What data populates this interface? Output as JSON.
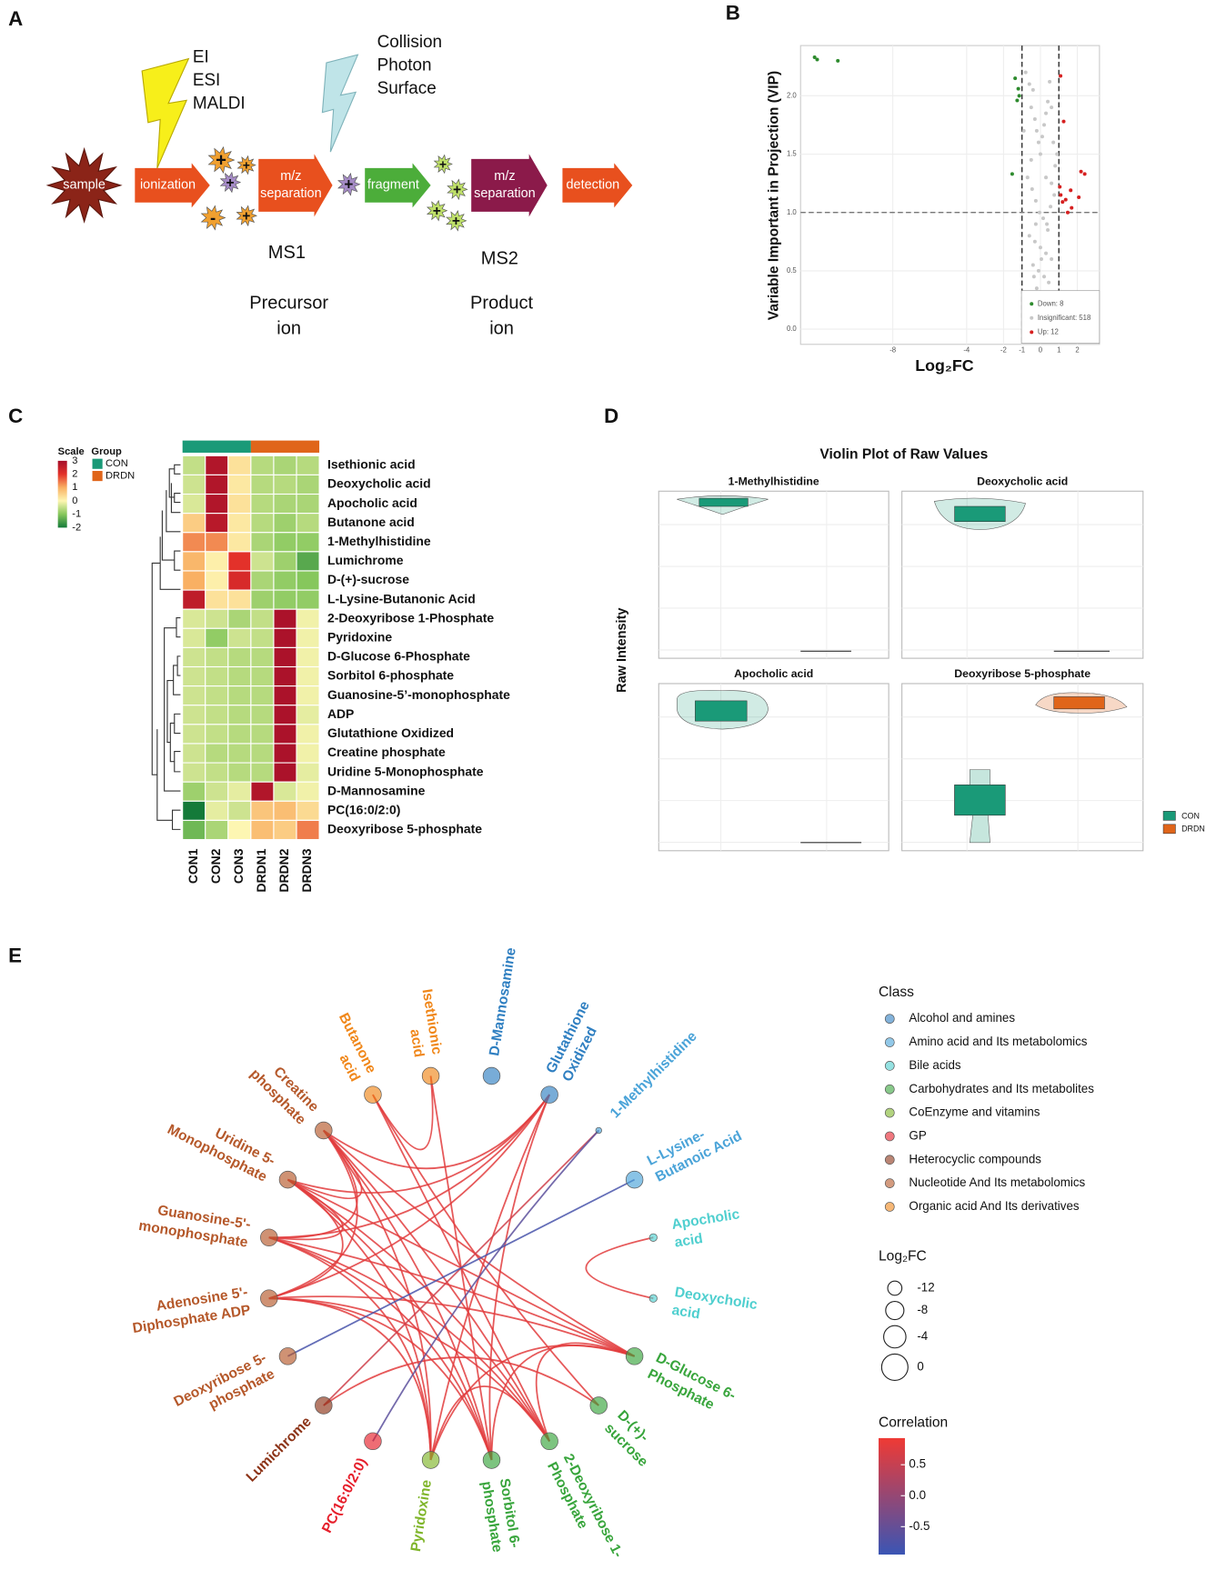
{
  "panel_labels": [
    "A",
    "B",
    "C",
    "D",
    "E"
  ],
  "panel_a": {
    "ionization_sources": [
      "EI",
      "ESI",
      "MALDI"
    ],
    "dissociation_methods": [
      "Collision",
      "Photon",
      "Surface"
    ],
    "steps": [
      [
        "sample"
      ],
      [
        "ionization"
      ],
      [
        "m/z",
        "separation"
      ],
      [
        "fragment"
      ],
      [
        "m/z",
        "separation"
      ],
      [
        "detection"
      ]
    ],
    "ion_signs": [
      "+",
      "+",
      "+",
      "-",
      "+",
      "+",
      "+",
      "+",
      "+",
      "+"
    ],
    "stage1": {
      "name": "MS1",
      "ion_lines": [
        "Precursor",
        "ion"
      ]
    },
    "stage2": {
      "name": "MS2",
      "ion_lines": [
        "Product",
        "ion"
      ]
    }
  },
  "panel_b": {
    "type": "scatter",
    "x_label": "Log₂FC",
    "y_label": "Variable Important in Projection (VIP)",
    "xlim": [
      -13,
      3.2
    ],
    "ylim": [
      -0.13,
      2.43
    ],
    "xticks": [
      -8,
      -4,
      -2,
      -1,
      0,
      1,
      2
    ],
    "yticks": [
      {
        "value": 0,
        "label": "0.0"
      },
      0.5,
      {
        "value": 1,
        "label": "1.0"
      },
      1.5,
      {
        "value": 2,
        "label": "2.0"
      }
    ],
    "fc_thresholds": [
      -1,
      1
    ],
    "vip_threshold": 1,
    "grid": true,
    "series": [
      {
        "name": "Down: 8",
        "color": "#2e8b2e",
        "x": [
          -12.24,
          -12.1,
          -10.98,
          -1.37,
          -1.2,
          -1.15,
          -1.26,
          -1.53
        ],
        "y": [
          2.33,
          2.31,
          2.3,
          2.15,
          2.06,
          2.0,
          1.96,
          1.33
        ]
      },
      {
        "name": "Insignificant: 518",
        "color": "#c8c8c8",
        "x": [
          -0.8,
          -0.6,
          -0.5,
          -0.4,
          -0.3,
          -0.2,
          -0.1,
          0,
          0.1,
          0.2,
          0.3,
          0.4,
          0.5,
          0.6,
          0.7,
          0.8,
          -0.7,
          -0.45,
          -0.25,
          -0.05,
          0.15,
          0.35,
          0.55,
          0.75,
          -0.6,
          -0.3,
          0,
          0.3,
          0.6,
          -0.4,
          -0.1,
          0.2,
          0.45,
          -0.2,
          0.1,
          0.35,
          -0.15,
          0.05,
          0.25,
          -0.05,
          0.15,
          -0.35,
          0.4,
          -0.5,
          0.6,
          0.9,
          -0.9,
          0.05,
          -0.25,
          0.3
        ],
        "y": [
          2.2,
          2.1,
          1.9,
          2.05,
          1.8,
          1.7,
          1.6,
          1.5,
          1.65,
          1.75,
          1.85,
          1.95,
          2.12,
          1.9,
          1.6,
          1.4,
          1.3,
          1.2,
          1.1,
          1.0,
          0.95,
          0.9,
          1.05,
          1.15,
          0.8,
          0.75,
          0.7,
          0.65,
          0.6,
          0.55,
          0.5,
          0.45,
          0.4,
          0.35,
          0.3,
          0.25,
          0.2,
          0.15,
          0.1,
          0.05,
          0.02,
          0.45,
          0.85,
          1.45,
          1.25,
          1.5,
          1.7,
          0.6,
          0.9,
          1.3
        ]
      },
      {
        "name": "Up: 12",
        "color": "#d62020",
        "x": [
          1.09,
          1.26,
          2.4,
          1.05,
          1.64,
          2.08,
          1.37,
          1.69,
          1.48,
          1.1,
          1.2,
          2.2
        ],
        "y": [
          2.17,
          1.78,
          1.33,
          1.22,
          1.19,
          1.13,
          1.11,
          1.04,
          1.0,
          1.15,
          1.09,
          1.35
        ]
      }
    ]
  },
  "panel_c": {
    "type": "heatmap",
    "scale_title": "Scale",
    "group_title": "Group",
    "scale_ticks": [
      3,
      2,
      1,
      0,
      -1,
      -2
    ],
    "scale_colors": [
      "#a50f2a",
      "#e3312a",
      "#f9b063",
      "#fdf6b2",
      "#86c75c",
      "#147a39"
    ],
    "groups": [
      {
        "name": "CON",
        "color": "#1a9a78"
      },
      {
        "name": "DRDN",
        "color": "#e0651a"
      }
    ],
    "columns": [
      "CON1",
      "CON2",
      "CON3",
      "DRDN1",
      "DRDN2",
      "DRDN3"
    ],
    "rows": [
      "Isethionic acid",
      "Deoxycholic acid",
      "Apocholic acid",
      "Butanone acid",
      "1-Methylhistidine",
      "Lumichrome",
      "D-(+)-sucrose",
      "L-Lysine-Butanonic Acid",
      "2-Deoxyribose 1-Phosphate",
      "Pyridoxine",
      "D-Glucose 6-Phosphate",
      "Sorbitol 6-phosphate",
      "Guanosine-5’-monophosphate",
      "ADP",
      "Glutathione Oxidized",
      "Creatine phosphate",
      "Uridine 5-Monophosphate",
      "D-Mannosamine",
      "PC(16:0/2:0)",
      "Deoxyribose 5-phosphate"
    ],
    "values": [
      [
        -0.5,
        2.8,
        0.3,
        -0.6,
        -0.7,
        -0.6
      ],
      [
        -0.4,
        2.8,
        0.2,
        -0.6,
        -0.6,
        -0.7
      ],
      [
        -0.3,
        2.8,
        0.3,
        -0.6,
        -0.7,
        -0.7
      ],
      [
        0.6,
        2.7,
        0.2,
        -0.6,
        -0.8,
        -0.6
      ],
      [
        1.3,
        1.3,
        0.2,
        -0.7,
        -0.9,
        -0.9
      ],
      [
        0.9,
        0.1,
        2.0,
        -0.4,
        -0.8,
        -1.4
      ],
      [
        1.0,
        0.1,
        2.2,
        -0.7,
        -0.9,
        -1.0
      ],
      [
        2.6,
        0.3,
        0.3,
        -0.8,
        -0.9,
        -0.9
      ],
      [
        -0.3,
        -0.4,
        -0.7,
        -0.5,
        2.9,
        -0.1
      ],
      [
        -0.3,
        -0.9,
        -0.4,
        -0.5,
        2.9,
        -0.1
      ],
      [
        -0.4,
        -0.5,
        -0.6,
        -0.6,
        2.9,
        -0.1
      ],
      [
        -0.4,
        -0.5,
        -0.6,
        -0.6,
        2.9,
        -0.1
      ],
      [
        -0.4,
        -0.5,
        -0.6,
        -0.6,
        2.9,
        -0.1
      ],
      [
        -0.4,
        -0.5,
        -0.6,
        -0.6,
        2.9,
        -0.2
      ],
      [
        -0.4,
        -0.5,
        -0.6,
        -0.6,
        2.9,
        -0.1
      ],
      [
        -0.4,
        -0.6,
        -0.6,
        -0.6,
        2.9,
        -0.1
      ],
      [
        -0.4,
        -0.5,
        -0.6,
        -0.6,
        2.9,
        -0.2
      ],
      [
        -0.8,
        -0.4,
        -0.2,
        2.8,
        -0.3,
        -0.1
      ],
      [
        -2.0,
        -0.2,
        -0.4,
        0.7,
        0.8,
        0.4
      ],
      [
        -1.2,
        -0.7,
        0.0,
        0.8,
        0.6,
        1.4
      ]
    ]
  },
  "panel_d": {
    "title": "Violin Plot of Raw Values",
    "y_label": "Raw Intensity",
    "subplots": [
      "1-Methylhistidine",
      "Deoxycholic acid",
      "Apocholic acid",
      "Deoxyribose 5-phosphate"
    ],
    "legend": [
      {
        "name": "CON",
        "color": "#1a9a78"
      },
      {
        "name": "DRDN",
        "color": "#e0651a"
      }
    ]
  },
  "panel_e": {
    "class_title": "Class",
    "classes": [
      {
        "name": "Alcohol and amines",
        "color": "#2f7fc1"
      },
      {
        "name": "Amino acid and Its metabolomics",
        "color": "#4aa3d8"
      },
      {
        "name": "Bile acids",
        "color": "#4fcfcf"
      },
      {
        "name": "Carbohydrates and Its metabolites",
        "color": "#38a53c"
      },
      {
        "name": "CoEnzyme and vitamins",
        "color": "#7fb52a"
      },
      {
        "name": "GP",
        "color": "#e61e2a"
      },
      {
        "name": "Heterocyclic compounds",
        "color": "#8c3317"
      },
      {
        "name": "Nucleotide And Its metabolomics",
        "color": "#b5582a"
      },
      {
        "name": "Organic acid And Its derivatives",
        "color": "#f0871a"
      }
    ],
    "size_title": "Log₂FC",
    "size_legend": [
      -12,
      -8,
      -4,
      0
    ],
    "corr_title": "Correlation",
    "corr_ticks": [
      0.5,
      {
        "value": 0,
        "label": "0.0"
      },
      -0.5
    ],
    "corr_lim": [
      -0.95,
      0.93
    ],
    "corr_colors": [
      "#3a55b4",
      "#ef3a34"
    ],
    "nodes": [
      {
        "label": [
          "Butanone",
          "acid"
        ],
        "class": 8,
        "log2fc": 1
      },
      {
        "label": [
          "Isethionic",
          "acid"
        ],
        "class": 8,
        "log2fc": 1
      },
      {
        "label": [
          "D-Mannosamine"
        ],
        "class": 0,
        "log2fc": 1
      },
      {
        "label": [
          "Glutathione",
          "Oxidized"
        ],
        "class": 0,
        "log2fc": 1
      },
      {
        "label": [
          "1-Methylhistidine"
        ],
        "class": 1,
        "log2fc": -12
      },
      {
        "label": [
          "L-Lysine-",
          "Butanoic Acid"
        ],
        "class": 1,
        "log2fc": 1
      },
      {
        "label": [
          "Apocholic",
          "acid"
        ],
        "class": 2,
        "log2fc": -10
      },
      {
        "label": [
          "Deoxycholic",
          "acid"
        ],
        "class": 2,
        "log2fc": -10
      },
      {
        "label": [
          "D-Glucose 6-",
          "Phosphate"
        ],
        "class": 3,
        "log2fc": 1
      },
      {
        "label": [
          "D-(+)-",
          "sucrose"
        ],
        "class": 3,
        "log2fc": 1
      },
      {
        "label": [
          "2-Deoxyribose 1-",
          "Phosphate"
        ],
        "class": 3,
        "log2fc": 1
      },
      {
        "label": [
          "Sorbitol 6-",
          "phosphate"
        ],
        "class": 3,
        "log2fc": 1
      },
      {
        "label": [
          "Pyridoxine"
        ],
        "class": 4,
        "log2fc": 1
      },
      {
        "label": [
          "PC(16:0/2:0)"
        ],
        "class": 5,
        "log2fc": 1
      },
      {
        "label": [
          "Lumichrome"
        ],
        "class": 6,
        "log2fc": 1
      },
      {
        "label": [
          "Deoxyribose 5-",
          "phosphate"
        ],
        "class": 7,
        "log2fc": 1
      },
      {
        "label": [
          "Adenosine 5'-",
          "Diphosphate ADP"
        ],
        "class": 7,
        "log2fc": 1
      },
      {
        "label": [
          "Guanosine-5'-",
          "monophosphate"
        ],
        "class": 7,
        "log2fc": 1
      },
      {
        "label": [
          "Uridine 5-",
          "Monophosphate"
        ],
        "class": 7,
        "log2fc": 1
      },
      {
        "label": [
          "Creatine",
          "phosphate"
        ],
        "class": 7,
        "log2fc": 1
      }
    ],
    "edges": [
      {
        "source": 1,
        "target": 0,
        "correlation": 0.8
      },
      {
        "source": 1,
        "target": 11,
        "correlation": 0.8
      },
      {
        "source": 0,
        "target": 9,
        "correlation": 0.8
      },
      {
        "source": 0,
        "target": 10,
        "correlation": 0.8
      },
      {
        "source": 3,
        "target": 19,
        "correlation": 0.8
      },
      {
        "source": 3,
        "target": 18,
        "correlation": 0.8
      },
      {
        "source": 3,
        "target": 17,
        "correlation": 0.8
      },
      {
        "source": 3,
        "target": 16,
        "correlation": 0.8
      },
      {
        "source": 3,
        "target": 12,
        "correlation": 0.8
      },
      {
        "source": 3,
        "target": 11,
        "correlation": 0.8
      },
      {
        "source": 6,
        "target": 7,
        "correlation": 0.8
      },
      {
        "source": 8,
        "target": 19,
        "correlation": 0.8
      },
      {
        "source": 8,
        "target": 18,
        "correlation": 0.8
      },
      {
        "source": 8,
        "target": 17,
        "correlation": 0.8
      },
      {
        "source": 8,
        "target": 16,
        "correlation": 0.8
      },
      {
        "source": 8,
        "target": 12,
        "correlation": 0.8
      },
      {
        "source": 8,
        "target": 11,
        "correlation": 0.8
      },
      {
        "source": 8,
        "target": 10,
        "correlation": 0.8
      },
      {
        "source": 10,
        "target": 19,
        "correlation": 0.8
      },
      {
        "source": 10,
        "target": 18,
        "correlation": 0.8
      },
      {
        "source": 10,
        "target": 17,
        "correlation": 0.8
      },
      {
        "source": 10,
        "target": 16,
        "correlation": 0.8
      },
      {
        "source": 10,
        "target": 12,
        "correlation": 0.8
      },
      {
        "source": 11,
        "target": 19,
        "correlation": 0.8
      },
      {
        "source": 11,
        "target": 18,
        "correlation": 0.8
      },
      {
        "source": 11,
        "target": 17,
        "correlation": 0.8
      },
      {
        "source": 11,
        "target": 16,
        "correlation": 0.8
      },
      {
        "source": 12,
        "target": 19,
        "correlation": 0.8
      },
      {
        "source": 12,
        "target": 18,
        "correlation": 0.8
      },
      {
        "source": 12,
        "target": 17,
        "correlation": 0.8
      },
      {
        "source": 12,
        "target": 16,
        "correlation": 0.8
      },
      {
        "source": 16,
        "target": 19,
        "correlation": 0.8
      },
      {
        "source": 16,
        "target": 18,
        "correlation": 0.8
      },
      {
        "source": 17,
        "target": 19,
        "correlation": 0.8
      },
      {
        "source": 17,
        "target": 18,
        "correlation": 0.8
      },
      {
        "source": 18,
        "target": 19,
        "correlation": 0.8
      },
      {
        "source": 9,
        "target": 14,
        "correlation": 0.8
      },
      {
        "source": 4,
        "target": 14,
        "correlation": 0.6
      },
      {
        "source": 5,
        "target": 15,
        "correlation": -0.8
      },
      {
        "source": 4,
        "target": 13,
        "correlation": -0.6
      }
    ]
  }
}
